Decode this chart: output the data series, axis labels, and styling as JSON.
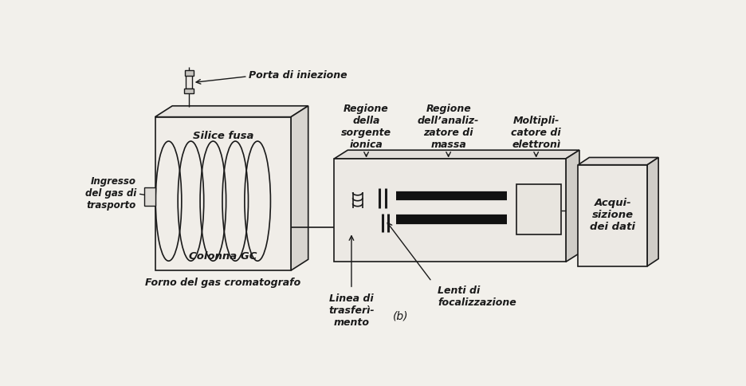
{
  "bg_color": "#f2f0eb",
  "line_color": "#1a1a1a",
  "fig_width": 9.36,
  "fig_height": 4.84,
  "labels": {
    "injection_port": "Porta di iniezione",
    "silice_fusa": "Silice fusa",
    "colonna_gc": "Colonna GC",
    "forno": "Forno del gas cromatografo",
    "ingresso": "Ingresso\ndel gas di\ntrasporto",
    "regione_sorgente": "Regione\ndella\nsorgente\nionica",
    "regione_analizzatore": "Regione\ndell’analiz-\nzatore di\nmassa",
    "moltiplicatore": "Moltipli-\ncatore di\nelettronì",
    "acquisizione": "Acqui-\nsizione\ndei dati",
    "linea": "Linea di\ntrasferì-\nmento",
    "lenti": "Lenti di\nfocalizzazione",
    "b_label": "(b)"
  }
}
